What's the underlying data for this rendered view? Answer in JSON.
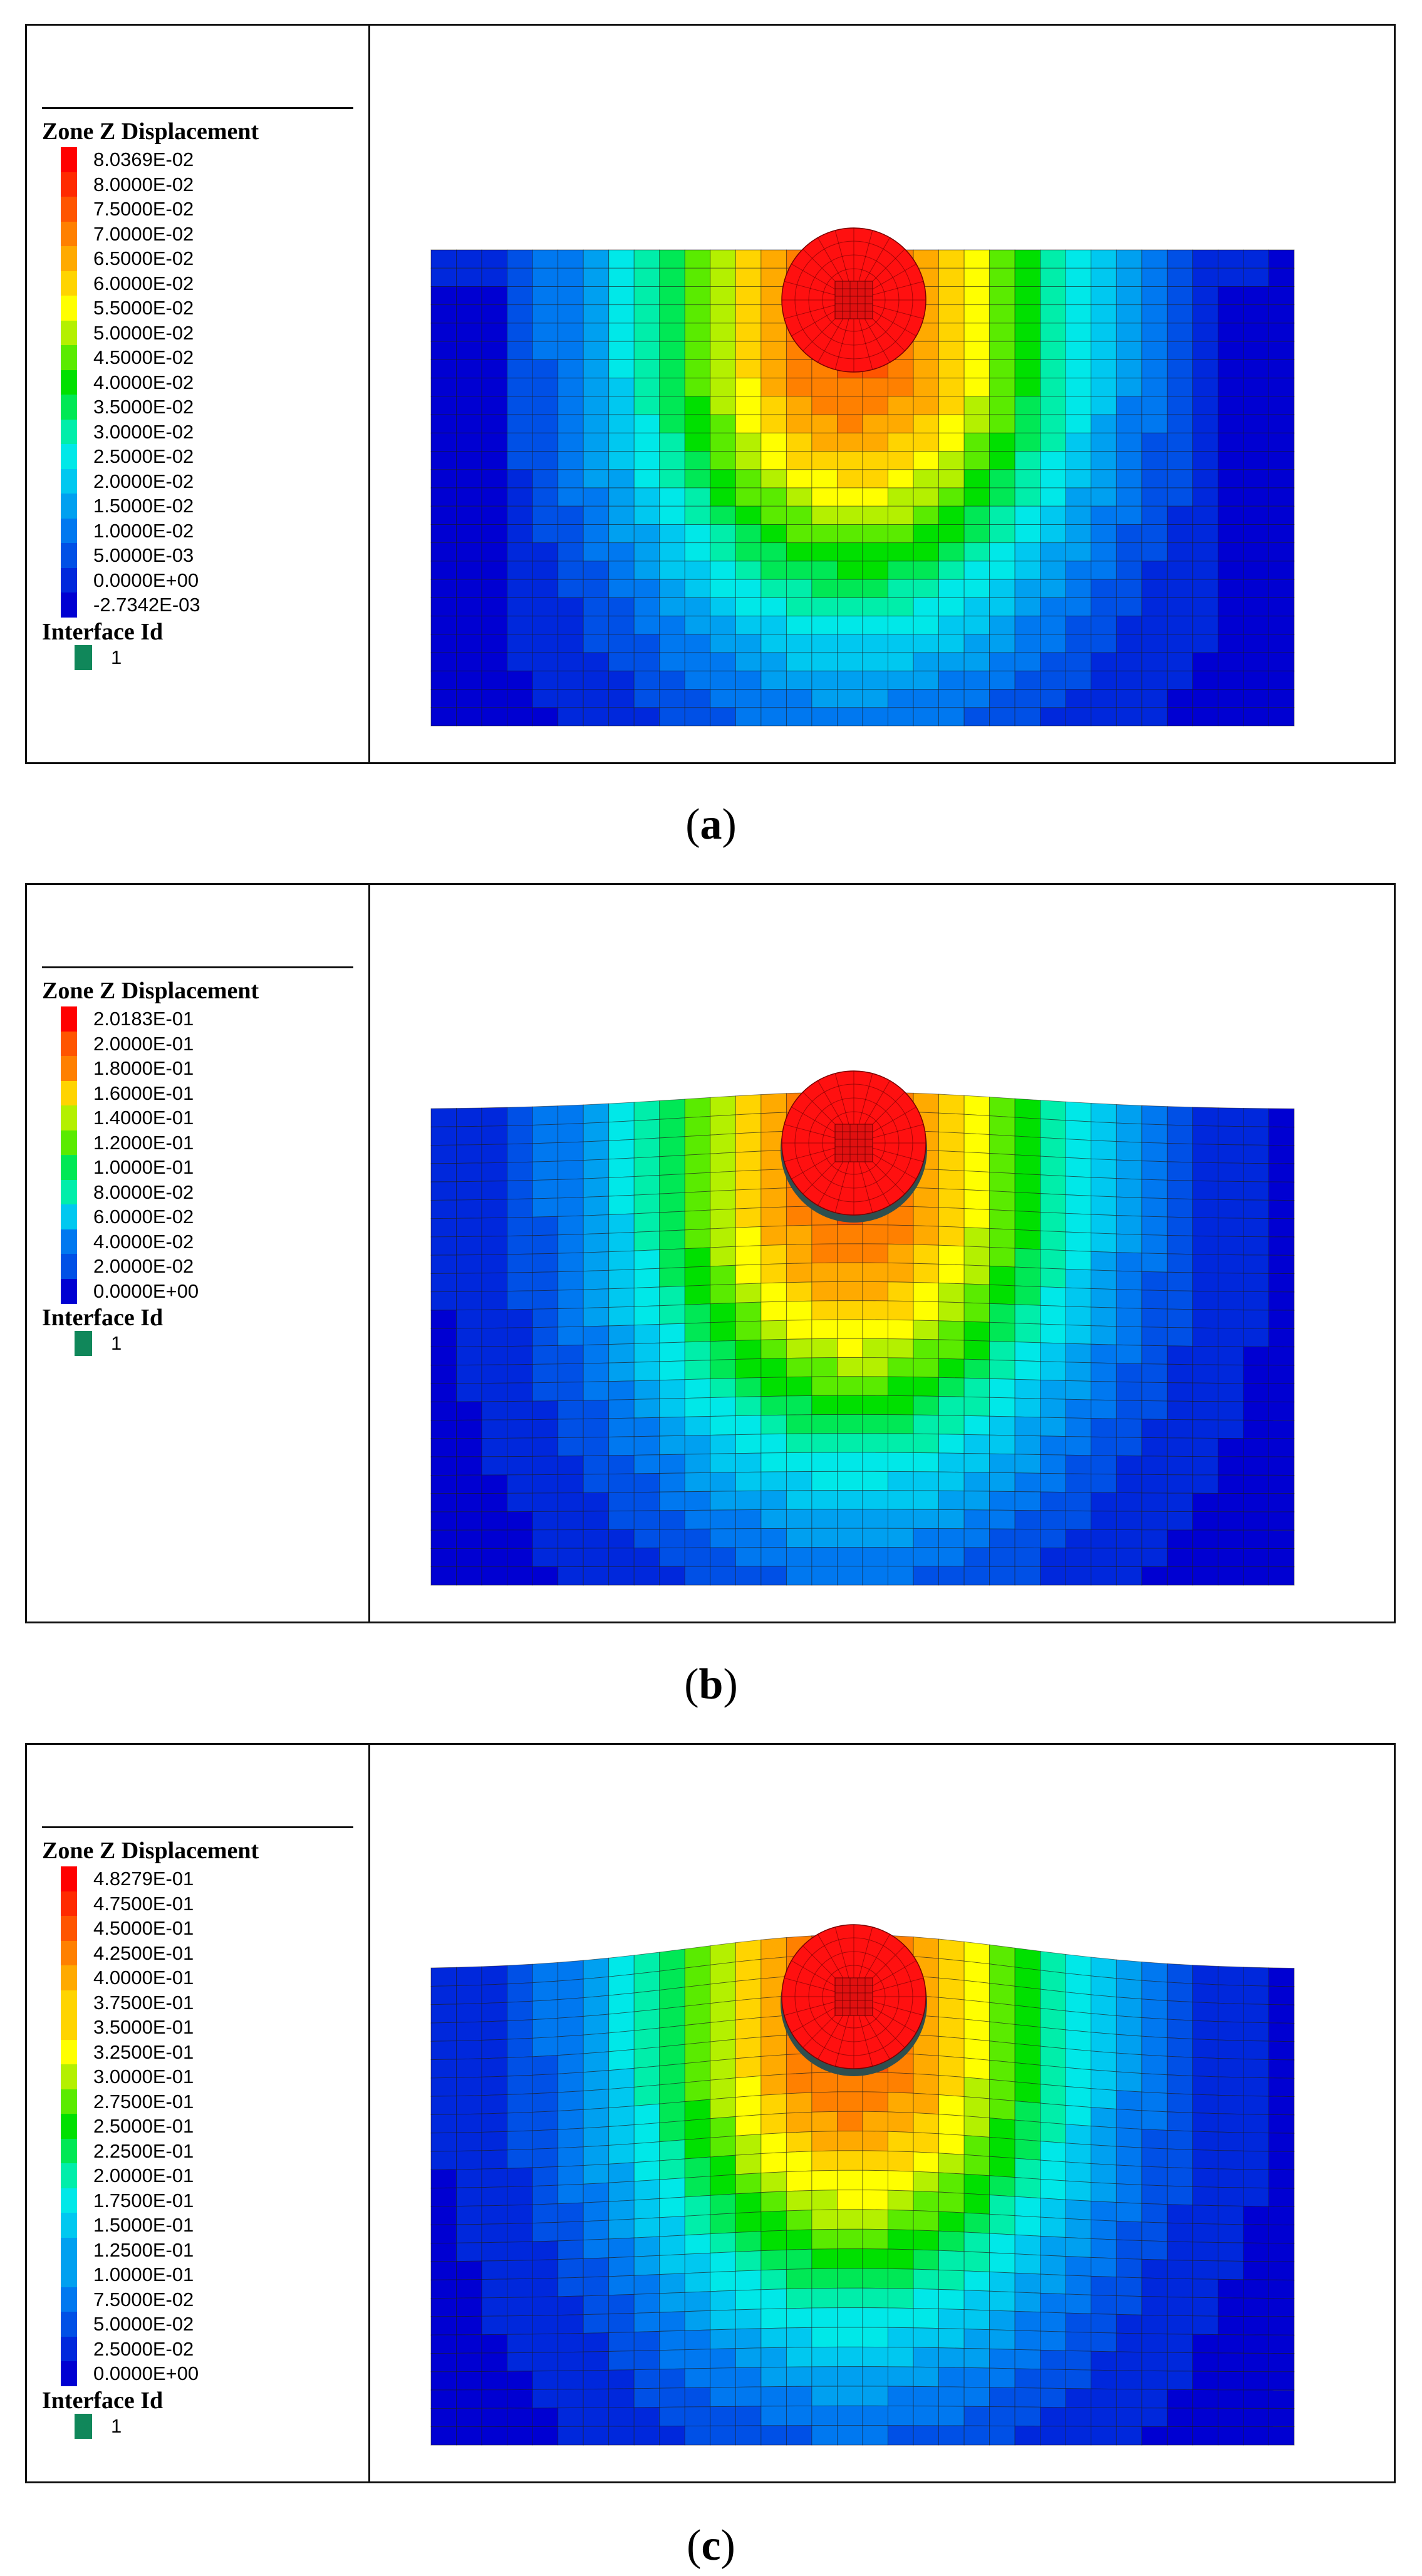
{
  "panels": [
    {
      "caption_letter": "a",
      "legend_title": "Zone Z Displacement",
      "legend_values": [
        "8.0369E-02",
        "8.0000E-02",
        "7.5000E-02",
        "7.0000E-02",
        "6.5000E-02",
        "6.0000E-02",
        "5.5000E-02",
        "5.0000E-02",
        "4.5000E-02",
        "4.0000E-02",
        "3.5000E-02",
        "3.0000E-02",
        "2.5000E-02",
        "2.0000E-02",
        "1.5000E-02",
        "1.0000E-02",
        "5.0000E-03",
        "0.0000E+00",
        "-2.7342E-03"
      ],
      "interface_title": "Interface Id",
      "interface_id": "1",
      "surface_bulge": 0
    },
    {
      "caption_letter": "b",
      "legend_title": "Zone Z Displacement",
      "legend_values": [
        "2.0183E-01",
        "2.0000E-01",
        "1.8000E-01",
        "1.6000E-01",
        "1.4000E-01",
        "1.2000E-01",
        "1.0000E-01",
        "8.0000E-02",
        "6.0000E-02",
        "4.0000E-02",
        "2.0000E-02",
        "0.0000E+00"
      ],
      "interface_title": "Interface Id",
      "interface_id": "1",
      "surface_bulge": 0.5
    },
    {
      "caption_letter": "c",
      "legend_title": "Zone Z Displacement",
      "legend_values": [
        "4.8279E-01",
        "4.7500E-01",
        "4.5000E-01",
        "4.2500E-01",
        "4.0000E-01",
        "3.7500E-01",
        "3.5000E-01",
        "3.2500E-01",
        "3.0000E-01",
        "2.7500E-01",
        "2.5000E-01",
        "2.2500E-01",
        "2.0000E-01",
        "1.7500E-01",
        "1.5000E-01",
        "1.2500E-01",
        "1.0000E-01",
        "7.5000E-02",
        "5.0000E-02",
        "2.5000E-02",
        "0.0000E+00"
      ],
      "interface_title": "Interface Id",
      "interface_id": "1",
      "surface_bulge": 1
    }
  ],
  "colors": {
    "scale_top_to_bottom": [
      "#ff0000",
      "#ff2a00",
      "#ff5500",
      "#ff8000",
      "#ffaa00",
      "#ffd400",
      "#ffff00",
      "#b4f000",
      "#5aeb00",
      "#00e000",
      "#00e855",
      "#00eeaa",
      "#00e8e8",
      "#00c8f0",
      "#00a0f0",
      "#0078f0",
      "#0050e6",
      "#0028dc",
      "#0000d2"
    ],
    "interface": "#10875a",
    "pipe": "#ff1010",
    "mesh_line": "#1a1a1a"
  }
}
